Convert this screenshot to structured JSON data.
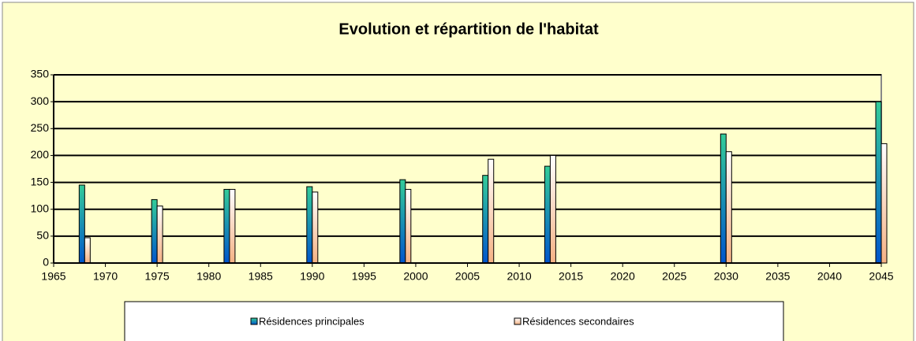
{
  "chart_data": {
    "type": "bar",
    "title": "Evolution et répartition de l'habitat",
    "x": [
      1968,
      1975,
      1982,
      1990,
      1999,
      2007,
      2013,
      2030,
      2045
    ],
    "series": [
      {
        "name": "Résidences principales",
        "color": "#33cc99",
        "values": [
          145,
          118,
          137,
          142,
          155,
          163,
          180,
          240,
          300
        ]
      },
      {
        "name": "Résidences secondaires",
        "color": "#f4b183",
        "values": [
          47,
          106,
          137,
          132,
          137,
          193,
          200,
          207,
          222
        ]
      }
    ],
    "xlim": [
      1965,
      2045
    ],
    "xticks": [
      1965,
      1970,
      1975,
      1980,
      1985,
      1990,
      1995,
      2000,
      2005,
      2010,
      2015,
      2020,
      2025,
      2030,
      2035,
      2040,
      2045
    ],
    "ylim": [
      0,
      350
    ],
    "yticks": [
      0,
      50,
      100,
      150,
      200,
      250,
      300,
      350
    ],
    "grid": true
  }
}
